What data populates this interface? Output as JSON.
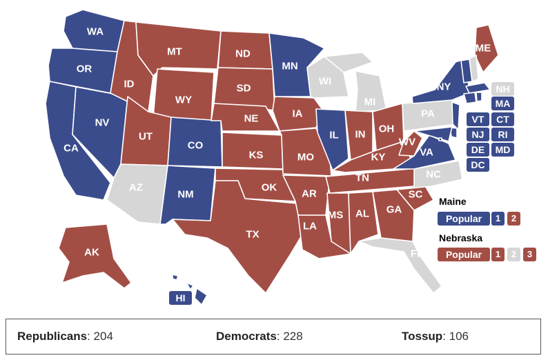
{
  "colors": {
    "rep": "#a34e45",
    "dem": "#3b4c8c",
    "toss": "#d6d6d6"
  },
  "states": [
    {
      "abbr": "WA",
      "party": "dem"
    },
    {
      "abbr": "OR",
      "party": "dem"
    },
    {
      "abbr": "CA",
      "party": "dem"
    },
    {
      "abbr": "NV",
      "party": "dem"
    },
    {
      "abbr": "ID",
      "party": "rep"
    },
    {
      "abbr": "MT",
      "party": "rep"
    },
    {
      "abbr": "WY",
      "party": "rep"
    },
    {
      "abbr": "UT",
      "party": "rep"
    },
    {
      "abbr": "AZ",
      "party": "toss"
    },
    {
      "abbr": "CO",
      "party": "dem"
    },
    {
      "abbr": "NM",
      "party": "dem"
    },
    {
      "abbr": "ND",
      "party": "rep"
    },
    {
      "abbr": "SD",
      "party": "rep"
    },
    {
      "abbr": "NE",
      "party": "rep"
    },
    {
      "abbr": "KS",
      "party": "rep"
    },
    {
      "abbr": "OK",
      "party": "rep"
    },
    {
      "abbr": "TX",
      "party": "rep"
    },
    {
      "abbr": "MN",
      "party": "dem"
    },
    {
      "abbr": "IA",
      "party": "rep"
    },
    {
      "abbr": "MO",
      "party": "rep"
    },
    {
      "abbr": "AR",
      "party": "rep"
    },
    {
      "abbr": "LA",
      "party": "rep"
    },
    {
      "abbr": "WI",
      "party": "toss"
    },
    {
      "abbr": "IL",
      "party": "dem"
    },
    {
      "abbr": "MI",
      "party": "toss"
    },
    {
      "abbr": "IN",
      "party": "rep"
    },
    {
      "abbr": "OH",
      "party": "rep"
    },
    {
      "abbr": "KY",
      "party": "rep"
    },
    {
      "abbr": "TN",
      "party": "rep"
    },
    {
      "abbr": "MS",
      "party": "rep"
    },
    {
      "abbr": "AL",
      "party": "rep"
    },
    {
      "abbr": "GA",
      "party": "rep"
    },
    {
      "abbr": "FL",
      "party": "toss"
    },
    {
      "abbr": "SC",
      "party": "rep"
    },
    {
      "abbr": "NC",
      "party": "toss"
    },
    {
      "abbr": "VA",
      "party": "dem"
    },
    {
      "abbr": "WV",
      "party": "rep"
    },
    {
      "abbr": "PA",
      "party": "toss"
    },
    {
      "abbr": "NY",
      "party": "dem"
    },
    {
      "abbr": "ME",
      "party": "rep"
    },
    {
      "abbr": "NH",
      "party": "toss"
    },
    {
      "abbr": "VT",
      "party": "dem"
    },
    {
      "abbr": "MA",
      "party": "dem"
    },
    {
      "abbr": "CT",
      "party": "dem"
    },
    {
      "abbr": "RI",
      "party": "dem"
    },
    {
      "abbr": "NJ",
      "party": "dem"
    },
    {
      "abbr": "DE",
      "party": "dem"
    },
    {
      "abbr": "MD",
      "party": "dem"
    },
    {
      "abbr": "DC",
      "party": "dem"
    },
    {
      "abbr": "AK",
      "party": "rep"
    },
    {
      "abbr": "HI",
      "party": "dem"
    }
  ],
  "maine": {
    "title": "Maine",
    "popular": "Popular",
    "d1": "1",
    "d2": "2"
  },
  "nebraska": {
    "title": "Nebraska",
    "popular": "Popular",
    "d1": "1",
    "d2": "2",
    "d3": "3"
  },
  "summary": {
    "rep_label": "Republicans",
    "rep_value": ": 204",
    "dem_label": "Democrats",
    "dem_value": ": 228",
    "toss_label": "Tossup",
    "toss_value": ": 106"
  }
}
